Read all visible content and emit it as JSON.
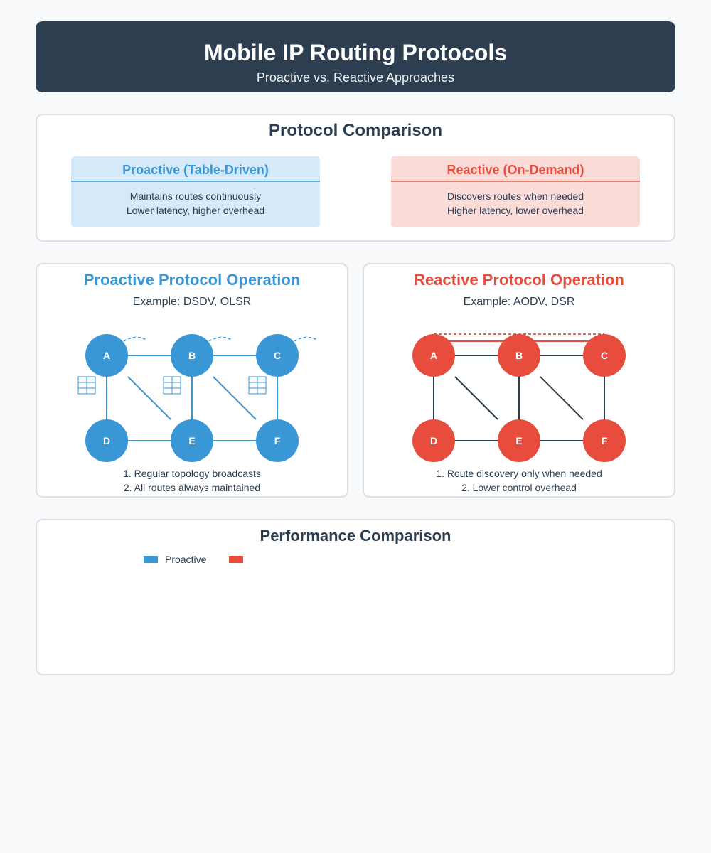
{
  "header": {
    "title": "Mobile IP Routing Protocols",
    "subtitle": "Proactive vs. Reactive Approaches"
  },
  "comparison": {
    "title": "Protocol Comparison",
    "proactive": {
      "title": "Proactive (Table-Driven)",
      "lines": [
        "Maintains routes continuously",
        "Lower latency, higher overhead"
      ]
    },
    "reactive": {
      "title": "Reactive (On-Demand)",
      "lines": [
        "Discovers routes when needed",
        "Higher latency, lower overhead"
      ]
    }
  },
  "proactive_op": {
    "title": "Proactive Protocol Operation",
    "example": "Example: DSDV, OLSR",
    "nodes": [
      "A",
      "B",
      "C",
      "D",
      "E",
      "F"
    ],
    "notes": [
      "1. Regular topology broadcasts",
      "2. All routes always maintained"
    ],
    "color": "#3a97d6"
  },
  "reactive_op": {
    "title": "Reactive Protocol Operation",
    "example": "Example: AODV, DSR",
    "nodes": [
      "A",
      "B",
      "C",
      "D",
      "E",
      "F"
    ],
    "notes": [
      "1. Route discovery only when needed",
      "2. Lower control overhead"
    ],
    "color": "#e74c3c"
  },
  "performance": {
    "title": "Performance Comparison",
    "legend": [
      {
        "label": "Proactive",
        "color": "#3a97d6"
      },
      {
        "label": "",
        "color": "#e74c3c"
      }
    ]
  }
}
